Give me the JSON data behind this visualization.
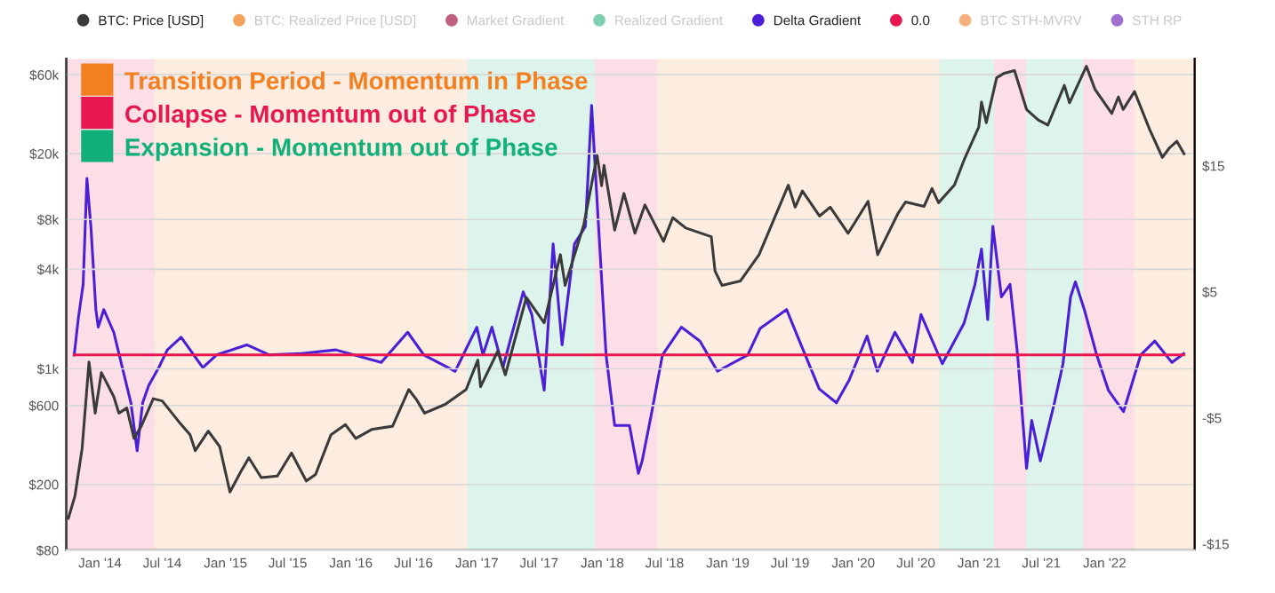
{
  "chart_data": {
    "type": "line",
    "xlim": [
      "2013-09-25",
      "2022-09-20"
    ],
    "xticks": [
      {
        "value": "2014-01-01",
        "label": "Jan '14"
      },
      {
        "value": "2014-07-01",
        "label": "Jul '14"
      },
      {
        "value": "2015-01-01",
        "label": "Jan '15"
      },
      {
        "value": "2015-07-01",
        "label": "Jul '15"
      },
      {
        "value": "2016-01-01",
        "label": "Jan '16"
      },
      {
        "value": "2016-07-01",
        "label": "Jul '16"
      },
      {
        "value": "2017-01-01",
        "label": "Jan '17"
      },
      {
        "value": "2017-07-01",
        "label": "Jul '17"
      },
      {
        "value": "2018-01-01",
        "label": "Jan '18"
      },
      {
        "value": "2018-07-01",
        "label": "Jul '18"
      },
      {
        "value": "2019-01-01",
        "label": "Jan '19"
      },
      {
        "value": "2019-07-01",
        "label": "Jul '19"
      },
      {
        "value": "2020-01-01",
        "label": "Jan '20"
      },
      {
        "value": "2020-07-01",
        "label": "Jul '20"
      },
      {
        "value": "2021-01-01",
        "label": "Jan '21"
      },
      {
        "value": "2021-07-01",
        "label": "Jul '21"
      },
      {
        "value": "2022-01-01",
        "label": "Jan '22"
      }
    ],
    "log": "y",
    "ylim": [
      80,
      75000
    ],
    "yticks": [
      {
        "value": 80,
        "label": "$80"
      },
      {
        "value": 200,
        "label": "$200"
      },
      {
        "value": 600,
        "label": "$600"
      },
      {
        "value": 1000,
        "label": "$1k"
      },
      {
        "value": 4000,
        "label": "$4k"
      },
      {
        "value": 8000,
        "label": "$8k"
      },
      {
        "value": 20000,
        "label": "$20k"
      },
      {
        "value": 60000,
        "label": "$60k"
      }
    ],
    "y2lim": [
      -15.5,
      23.5
    ],
    "y2ticks": [
      {
        "value": -15,
        "label": "-$15"
      },
      {
        "value": -5,
        "label": "-$5"
      },
      {
        "value": 5,
        "label": "$5"
      },
      {
        "value": 15,
        "label": "$15"
      }
    ],
    "legend": "top",
    "grid": "y",
    "bands": [
      {
        "axis": "x",
        "from": "2013-09-25",
        "to": "2014-06-10",
        "label": "Collapse - Momentum out of Phase",
        "color": "#e8174f"
      },
      {
        "axis": "x",
        "from": "2014-06-10",
        "to": "2016-12-05",
        "label": "Transition Period - Momentum in Phase",
        "color": "#f47f20"
      },
      {
        "axis": "x",
        "from": "2016-12-05",
        "to": "2017-12-10",
        "label": "Expansion - Momentum out of Phase",
        "color": "#11b07a"
      },
      {
        "axis": "x",
        "from": "2017-12-10",
        "to": "2018-06-10",
        "color": "#e8174f"
      },
      {
        "axis": "x",
        "from": "2018-06-10",
        "to": "2020-09-08",
        "color": "#f47f20"
      },
      {
        "axis": "x",
        "from": "2020-09-08",
        "to": "2021-02-14",
        "color": "#11b07a"
      },
      {
        "axis": "x",
        "from": "2021-02-14",
        "to": "2021-05-18",
        "color": "#e8174f"
      },
      {
        "axis": "x",
        "from": "2021-05-18",
        "to": "2021-10-30",
        "color": "#11b07a"
      },
      {
        "axis": "x",
        "from": "2021-10-30",
        "to": "2022-03-28",
        "color": "#e8174f"
      },
      {
        "axis": "x",
        "from": "2022-03-28",
        "to": "2022-09-20",
        "color": "#f47f20"
      }
    ],
    "series": [
      {
        "name": "BTC: Price [USD]",
        "color": "#3a3a3a",
        "x": [
          "2013-10-01",
          "2013-10-20",
          "2013-11-10",
          "2013-11-30",
          "2013-12-18",
          "2014-01-05",
          "2014-02-10",
          "2014-02-25",
          "2014-03-20",
          "2014-04-10",
          "2014-05-01",
          "2014-06-05",
          "2014-07-01",
          "2014-08-18",
          "2014-09-20",
          "2014-10-05",
          "2014-11-12",
          "2014-12-15",
          "2015-01-14",
          "2015-02-15",
          "2015-03-10",
          "2015-04-15",
          "2015-06-01",
          "2015-07-12",
          "2015-08-24",
          "2015-09-20",
          "2015-11-04",
          "2015-12-16",
          "2016-01-15",
          "2016-03-01",
          "2016-05-01",
          "2016-06-17",
          "2016-07-10",
          "2016-08-02",
          "2016-10-01",
          "2016-12-01",
          "2017-01-04",
          "2017-01-12",
          "2017-03-03",
          "2017-03-25",
          "2017-05-25",
          "2017-07-16",
          "2017-09-01",
          "2017-09-15",
          "2017-11-08",
          "2017-12-17",
          "2017-12-30",
          "2018-01-06",
          "2018-02-06",
          "2018-03-05",
          "2018-04-06",
          "2018-05-05",
          "2018-06-28",
          "2018-07-25",
          "2018-09-01",
          "2018-11-14",
          "2018-11-25",
          "2018-12-15",
          "2019-02-07",
          "2019-04-02",
          "2019-06-26",
          "2019-07-16",
          "2019-08-06",
          "2019-09-25",
          "2019-10-26",
          "2019-12-17",
          "2020-02-13",
          "2020-03-12",
          "2020-05-10",
          "2020-06-01",
          "2020-07-25",
          "2020-08-17",
          "2020-09-05",
          "2020-10-21",
          "2020-11-20",
          "2020-12-31",
          "2021-01-08",
          "2021-01-22",
          "2021-02-21",
          "2021-03-13",
          "2021-04-14",
          "2021-05-19",
          "2021-06-22",
          "2021-07-20",
          "2021-09-06",
          "2021-09-21",
          "2021-11-09",
          "2021-12-04",
          "2022-01-22",
          "2022-02-10",
          "2022-02-24",
          "2022-03-29",
          "2022-05-12",
          "2022-06-18",
          "2022-07-08",
          "2022-07-30",
          "2022-08-20"
        ],
        "values": [
          125,
          170,
          330,
          1100,
          540,
          950,
          680,
          540,
          580,
          380,
          450,
          660,
          640,
          480,
          400,
          320,
          420,
          340,
          180,
          240,
          290,
          220,
          225,
          310,
          210,
          230,
          400,
          460,
          380,
          430,
          450,
          750,
          650,
          540,
          610,
          750,
          1130,
          780,
          1280,
          920,
          2700,
          1900,
          4900,
          3200,
          7400,
          19500,
          12800,
          17000,
          6900,
          11500,
          6600,
          9800,
          5900,
          8200,
          7100,
          6300,
          3900,
          3200,
          3400,
          4900,
          12900,
          9500,
          11900,
          8400,
          9500,
          6600,
          10300,
          4900,
          8700,
          10200,
          9600,
          12300,
          10100,
          12900,
          18700,
          29000,
          41000,
          30800,
          57500,
          61000,
          63500,
          37000,
          32000,
          29800,
          51800,
          40600,
          67500,
          49000,
          35000,
          44000,
          37000,
          47500,
          28000,
          19000,
          21600,
          23800,
          20000
        ]
      },
      {
        "name": "BTC: Realized Price [USD]",
        "color": "#f5a35c"
      },
      {
        "name": "Market Gradient",
        "color": "#c0607f"
      },
      {
        "name": "Realized Gradient",
        "color": "#7fcfb0"
      },
      {
        "name": "Delta Gradient",
        "color": "#4b1fd6",
        "axis": "y2",
        "x": [
          "2013-10-18",
          "2013-10-30",
          "2013-11-13",
          "2013-11-24",
          "2013-12-06",
          "2013-12-20",
          "2013-12-27",
          "2014-01-12",
          "2014-02-10",
          "2014-03-07",
          "2014-04-01",
          "2014-04-19",
          "2014-05-05",
          "2014-05-23",
          "2014-06-21",
          "2014-07-16",
          "2014-08-25",
          "2014-10-27",
          "2014-12-06",
          "2015-03-04",
          "2015-05-09",
          "2015-08-04",
          "2015-11-18",
          "2016-03-29",
          "2016-06-14",
          "2016-07-31",
          "2016-10-30",
          "2017-01-01",
          "2017-01-19",
          "2017-02-14",
          "2017-03-18",
          "2017-05-16",
          "2017-06-10",
          "2017-07-16",
          "2017-08-11",
          "2017-09-06",
          "2017-10-12",
          "2017-11-13",
          "2017-12-01",
          "2017-12-16",
          "2018-01-12",
          "2018-02-06",
          "2018-03-21",
          "2018-04-16",
          "2018-04-27",
          "2018-05-23",
          "2018-06-25",
          "2018-08-19",
          "2018-10-12",
          "2018-12-02",
          "2019-02-28",
          "2019-04-05",
          "2019-06-21",
          "2019-07-24",
          "2019-09-24",
          "2019-11-13",
          "2019-12-20",
          "2020-02-10",
          "2020-03-11",
          "2020-05-01",
          "2020-06-21",
          "2020-07-16",
          "2020-09-16",
          "2020-11-18",
          "2020-12-20",
          "2021-01-08",
          "2021-01-26",
          "2021-02-10",
          "2021-03-07",
          "2021-04-01",
          "2021-04-23",
          "2021-05-19",
          "2021-06-03",
          "2021-06-28",
          "2021-08-08",
          "2021-09-02",
          "2021-09-24",
          "2021-10-08",
          "2021-11-03",
          "2021-12-09",
          "2022-01-12",
          "2022-02-25",
          "2022-04-16",
          "2022-05-27",
          "2022-07-16",
          "2022-08-19"
        ],
        "values": [
          0,
          2.9,
          5.6,
          14,
          10,
          3.6,
          2.2,
          3.6,
          1.8,
          -1,
          -3.8,
          -7.6,
          -3.8,
          -2.4,
          -1,
          0.4,
          1.4,
          -1,
          0,
          0.8,
          0,
          0.1,
          0.4,
          -0.6,
          1.8,
          0,
          -1.3,
          2.2,
          0,
          2.2,
          -1,
          5,
          3.2,
          -2.8,
          8.8,
          0.8,
          8.8,
          10.2,
          19.8,
          12.6,
          0,
          -5.6,
          -5.6,
          -9.4,
          -8.4,
          -4.8,
          0,
          2.2,
          1.1,
          -1.3,
          0,
          2.1,
          3.6,
          1.4,
          -2.7,
          -3.8,
          -2,
          1.5,
          -1.3,
          1.8,
          -0.6,
          3.2,
          -0.7,
          2.5,
          5.6,
          8.4,
          2.8,
          10.2,
          4.6,
          5.6,
          0,
          -9,
          -5.2,
          -8.4,
          -3.8,
          -0.7,
          4.6,
          5.8,
          3.6,
          0,
          -2.8,
          -4.5,
          0,
          1.1,
          -0.6,
          0.1
        ]
      },
      {
        "name": "0.0",
        "color": "#e8174f",
        "axis": "y2",
        "x": [
          "2013-10-18",
          "2022-08-19"
        ],
        "values": [
          0,
          0
        ]
      },
      {
        "name": "BTC STH-MVRV",
        "color": "#f5b07f"
      },
      {
        "name": "STH RP",
        "color": "#9e6fd0"
      }
    ]
  }
}
